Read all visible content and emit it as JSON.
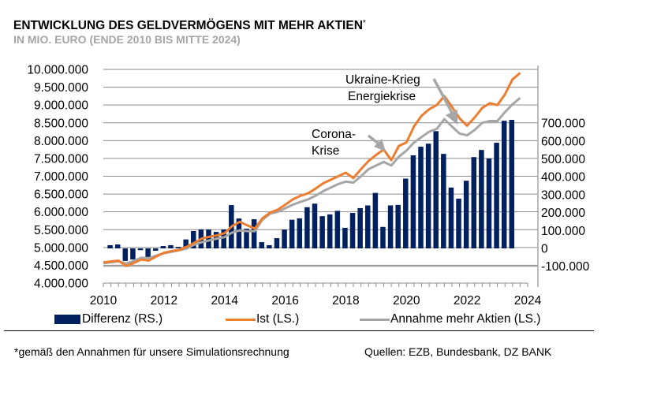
{
  "header": {
    "title": "ENTWICKLUNG DES GELDVERMÖGENS MIT MEHR AKTIEN",
    "title_marker": "*",
    "subtitle": "IN MIO. EURO (ENDE 2010 BIS MITTE 2024)"
  },
  "legend": {
    "items": [
      {
        "label": "Differenz (RS.)",
        "type": "bar",
        "color": "#002060"
      },
      {
        "label": "Ist (LS.)",
        "type": "line",
        "color": "#ED7D31"
      },
      {
        "label": "Annahme mehr Aktien (LS.)",
        "type": "line",
        "color": "#A6A6A6"
      }
    ]
  },
  "footer": {
    "footnote": "*gemäß den Annahmen für unsere Simulationsrechnung",
    "source": "Quellen: EZB, Bundesbank, DZ BANK"
  },
  "annotations": [
    {
      "lines": [
        "Ukraine-Krieg",
        "Energiekrise"
      ],
      "target": "2022"
    },
    {
      "lines": [
        "Corona-",
        "Krise"
      ],
      "target": "2020 Q1"
    }
  ],
  "chart_data": {
    "type": "bar+line",
    "title": "ENTWICKLUNG DES GELDVERMÖGENS MIT MEHR AKTIEN*",
    "subtitle": "IN MIO. EURO (ENDE 2010 BIS MITTE 2024)",
    "x_axis": {
      "ticks": [
        "2010",
        "2012",
        "2014",
        "2016",
        "2018",
        "2020",
        "2022",
        "2024"
      ],
      "range": [
        2010,
        2024
      ],
      "minor_tick_interval": "quarter"
    },
    "y_left": {
      "label": "LS.",
      "range": [
        4000000,
        10000000
      ],
      "step": 500000,
      "ticks": [
        "4.000.000",
        "4.500.000",
        "5.000.000",
        "5.500.000",
        "6.000.000",
        "6.500.000",
        "7.000.000",
        "7.500.000",
        "8.000.000",
        "8.500.000",
        "9.000.000",
        "9.500.000",
        "10.000.000"
      ]
    },
    "y_right": {
      "label": "RS.",
      "range": [
        -200000,
        900000
      ],
      "ticks": [
        "-100.000",
        "0",
        "100.000",
        "200.000",
        "300.000",
        "400.000",
        "500.000",
        "600.000",
        "700.000"
      ]
    },
    "grid": true,
    "legend_position": "bottom",
    "series": [
      {
        "name": "Differenz (RS.)",
        "type": "bar",
        "axis": "right",
        "color": "#002060",
        "x": [
          2010.25,
          2010.5,
          2010.75,
          2011.0,
          2011.25,
          2011.5,
          2011.75,
          2012.0,
          2012.25,
          2012.5,
          2012.75,
          2013.0,
          2013.25,
          2013.5,
          2013.75,
          2014.0,
          2014.25,
          2014.5,
          2014.75,
          2015.0,
          2015.25,
          2015.5,
          2015.75,
          2016.0,
          2016.25,
          2016.5,
          2016.75,
          2017.0,
          2017.25,
          2017.5,
          2017.75,
          2018.0,
          2018.25,
          2018.5,
          2018.75,
          2019.0,
          2019.25,
          2019.5,
          2019.75,
          2020.0,
          2020.25,
          2020.5,
          2020.75,
          2021.0,
          2021.25,
          2021.5,
          2021.75,
          2022.0,
          2022.25,
          2022.5,
          2022.75,
          2023.0,
          2023.25,
          2023.5
        ],
        "values": [
          18000,
          22000,
          -70000,
          -62000,
          -10000,
          -48000,
          -13000,
          13000,
          18000,
          8000,
          50000,
          97000,
          106000,
          106000,
          92000,
          106000,
          242000,
          167000,
          110000,
          163000,
          35000,
          18000,
          57000,
          105000,
          160000,
          168000,
          230000,
          250000,
          180000,
          190000,
          210000,
          115000,
          198000,
          225000,
          240000,
          310000,
          120000,
          240000,
          243000,
          390000,
          520000,
          568000,
          585000,
          655000,
          528000,
          340000,
          278000,
          378000,
          510000,
          550000,
          502000,
          590000,
          713000,
          718000
        ]
      },
      {
        "name": "Ist (LS.)",
        "type": "line",
        "axis": "left",
        "color": "#ED7D31",
        "x": [
          2010.0,
          2010.5,
          2010.75,
          2011.0,
          2011.25,
          2011.5,
          2011.75,
          2012.0,
          2012.25,
          2012.5,
          2012.75,
          2013.0,
          2013.25,
          2013.5,
          2013.75,
          2014.0,
          2014.25,
          2014.5,
          2014.75,
          2015.0,
          2015.25,
          2015.5,
          2015.75,
          2016.0,
          2016.25,
          2016.5,
          2016.75,
          2017.0,
          2017.25,
          2017.5,
          2017.75,
          2018.0,
          2018.25,
          2018.5,
          2018.75,
          2019.0,
          2019.25,
          2019.5,
          2019.75,
          2020.0,
          2020.25,
          2020.5,
          2020.75,
          2021.0,
          2021.25,
          2021.5,
          2021.75,
          2022.0,
          2022.25,
          2022.5,
          2022.75,
          2023.0,
          2023.25,
          2023.5
        ],
        "values": [
          4580000,
          4630000,
          4480000,
          4560000,
          4660000,
          4630000,
          4750000,
          4850000,
          4900000,
          4930000,
          5020000,
          5130000,
          5250000,
          5300000,
          5340000,
          5400000,
          5600000,
          5720000,
          5620000,
          5530000,
          5820000,
          5980000,
          6060000,
          6200000,
          6350000,
          6450000,
          6520000,
          6650000,
          6800000,
          6900000,
          7000000,
          7100000,
          6950000,
          7200000,
          7430000,
          7600000,
          7750000,
          7450000,
          7850000,
          7950000,
          8400000,
          8700000,
          8880000,
          9000000,
          9250000,
          8950000,
          8630000,
          8420000,
          8650000,
          8920000,
          9050000,
          9000000,
          9300000,
          9720000
        ]
      },
      {
        "name": "Annahme mehr Aktien (LS.)",
        "type": "line",
        "axis": "left",
        "color": "#A6A6A6",
        "x": [
          2010.0,
          2010.5,
          2010.75,
          2011.0,
          2011.25,
          2011.5,
          2011.75,
          2012.0,
          2012.25,
          2012.5,
          2012.75,
          2013.0,
          2013.25,
          2013.5,
          2013.75,
          2014.0,
          2014.25,
          2014.5,
          2014.75,
          2015.0,
          2015.25,
          2015.5,
          2015.75,
          2016.0,
          2016.25,
          2016.5,
          2016.75,
          2017.0,
          2017.25,
          2017.5,
          2017.75,
          2018.0,
          2018.25,
          2018.5,
          2018.75,
          2019.0,
          2019.25,
          2019.5,
          2019.75,
          2020.0,
          2020.25,
          2020.5,
          2020.75,
          2021.0,
          2021.25,
          2021.5,
          2021.75,
          2022.0,
          2022.25,
          2022.5,
          2022.75,
          2023.0,
          2023.25,
          2023.5
        ],
        "values": [
          4560000,
          4610000,
          4550000,
          4620000,
          4710000,
          4700000,
          4770000,
          4840000,
          4880000,
          4920000,
          4970000,
          5080000,
          5150000,
          5200000,
          5250000,
          5290000,
          5420000,
          5480000,
          5460000,
          5460000,
          5780000,
          5950000,
          6000000,
          6100000,
          6200000,
          6280000,
          6350000,
          6450000,
          6580000,
          6680000,
          6780000,
          6850000,
          6820000,
          7000000,
          7200000,
          7300000,
          7400000,
          7300000,
          7550000,
          7720000,
          7950000,
          8100000,
          8250000,
          8330000,
          8600000,
          8400000,
          8200000,
          8150000,
          8300000,
          8500000,
          8550000,
          8550000,
          8800000,
          9020000
        ]
      }
    ],
    "extra_last_points": {
      "Ist (LS.)": {
        "x": 2023.75,
        "value": 9900000
      },
      "Annahme mehr Aktien (LS.)": {
        "x": 2023.75,
        "value": 9200000
      }
    }
  }
}
